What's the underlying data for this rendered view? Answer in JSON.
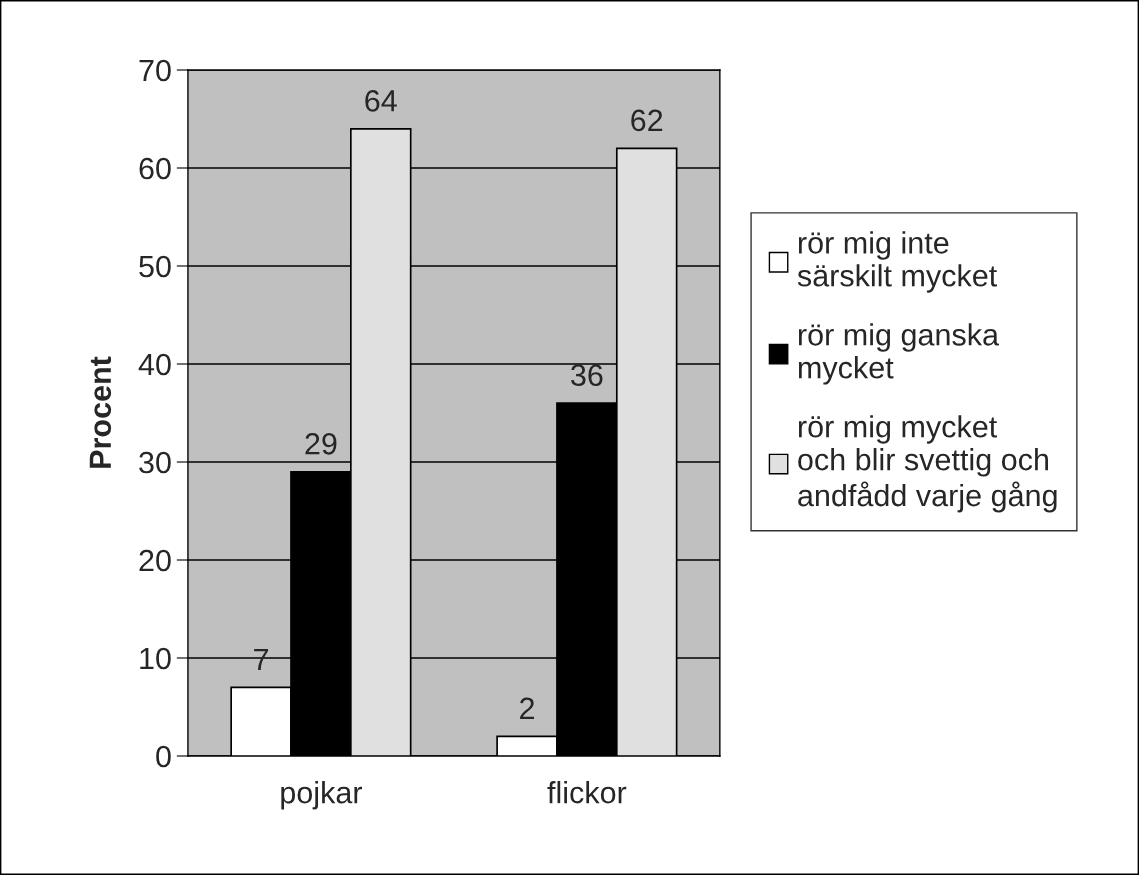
{
  "chart_data": {
    "type": "bar",
    "ylabel": "Procent",
    "categories": [
      "pojkar",
      "flickor"
    ],
    "series": [
      {
        "name": "rör mig inte\nsärskilt mycket",
        "color": "#ffffff",
        "values": [
          7,
          2
        ]
      },
      {
        "name": "rör mig ganska\nmycket",
        "color": "#000000",
        "values": [
          29,
          36
        ]
      },
      {
        "name": "rör mig mycket\noch blir svettig och\nandfådd varje gång",
        "color": "#e0e0e0",
        "values": [
          64,
          62
        ]
      }
    ],
    "ylim": [
      0,
      70
    ],
    "yticks": [
      0,
      10,
      20,
      30,
      40,
      50,
      60,
      70
    ],
    "grid": "y",
    "legend": "right",
    "data_labels": true
  }
}
